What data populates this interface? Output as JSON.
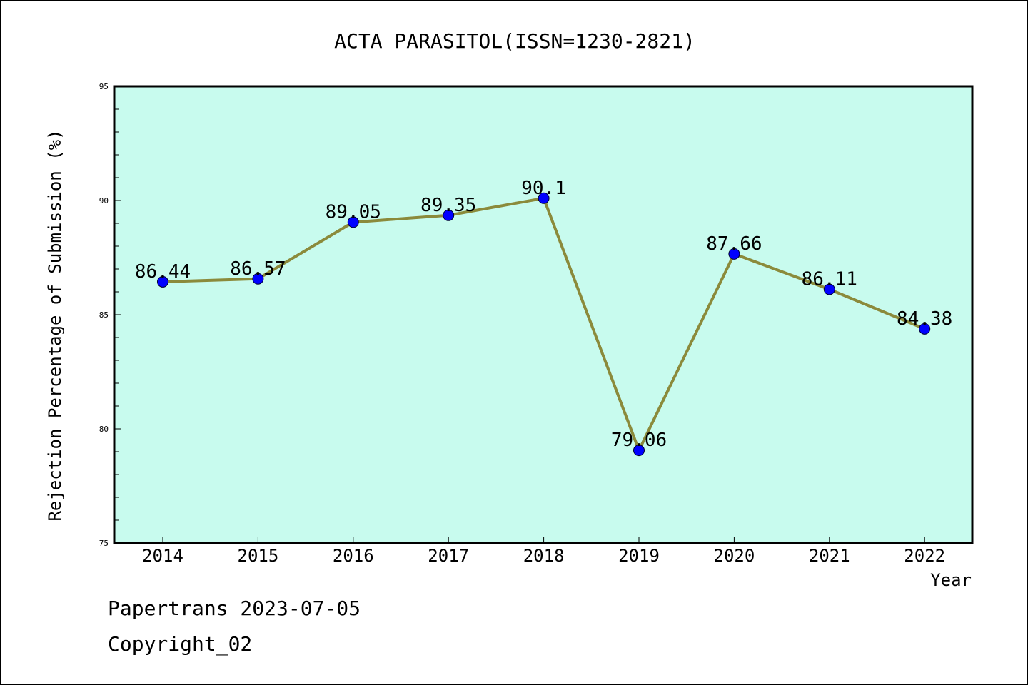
{
  "chart_data": {
    "type": "line",
    "title": "ACTA PARASITOL(ISSN=1230-2821)",
    "xlabel": "Year",
    "ylabel": "Rejection Percentage of Submission (%)",
    "categories": [
      "2014",
      "2015",
      "2016",
      "2017",
      "2018",
      "2019",
      "2020",
      "2021",
      "2022"
    ],
    "series": [
      {
        "values": [
          86.44,
          86.57,
          89.05,
          89.35,
          90.1,
          79.06,
          87.66,
          86.11,
          84.38
        ],
        "labels": [
          "86.44",
          "86.57",
          "89.05",
          "89.35",
          "90.1",
          "79.06",
          "87.66",
          "86.11",
          "84.38"
        ]
      }
    ],
    "ylim": [
      75,
      95
    ],
    "yticks": [
      "75",
      "80",
      "85",
      "90",
      "95"
    ],
    "grid": false,
    "colors": {
      "background": "#c8fbee",
      "line": "#8b8a3b",
      "marker": "#0000ff"
    }
  },
  "footer": {
    "line1": "Papertrans 2023-07-05",
    "line2": "Copyright_02"
  }
}
